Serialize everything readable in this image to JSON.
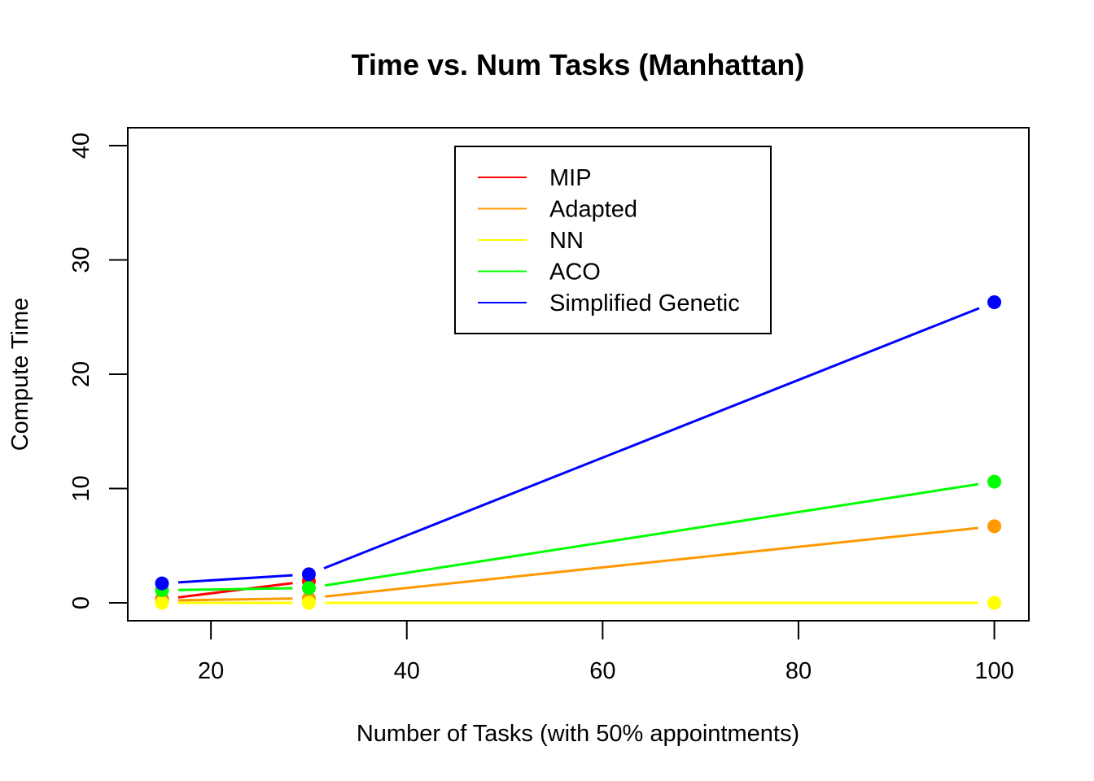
{
  "chart_data": {
    "type": "line",
    "title": "Time vs. Num Tasks (Manhattan)",
    "xlabel": "Number of Tasks (with 50% appointments)",
    "ylabel": "Compute Time",
    "xlim": [
      15,
      100
    ],
    "ylim": [
      0,
      40
    ],
    "xticks": [
      20,
      40,
      60,
      80,
      100
    ],
    "yticks": [
      0,
      10,
      20,
      30,
      40
    ],
    "grid": false,
    "legend_position": "top-center",
    "series": [
      {
        "name": "MIP",
        "color": "#ff0000",
        "x": [
          15,
          30
        ],
        "y": [
          0.3,
          1.9
        ]
      },
      {
        "name": "Adapted",
        "color": "#ff9900",
        "x": [
          15,
          30,
          100
        ],
        "y": [
          0.2,
          0.4,
          6.7
        ]
      },
      {
        "name": "NN",
        "color": "#ffff00",
        "x": [
          15,
          30,
          100
        ],
        "y": [
          0.0,
          0.0,
          0.0
        ]
      },
      {
        "name": "ACO",
        "color": "#00ff00",
        "x": [
          15,
          30,
          100
        ],
        "y": [
          1.1,
          1.3,
          10.6
        ]
      },
      {
        "name": "Simplified Genetic",
        "color": "#0000ff",
        "x": [
          15,
          30,
          100
        ],
        "y": [
          1.7,
          2.5,
          26.3
        ]
      }
    ]
  }
}
